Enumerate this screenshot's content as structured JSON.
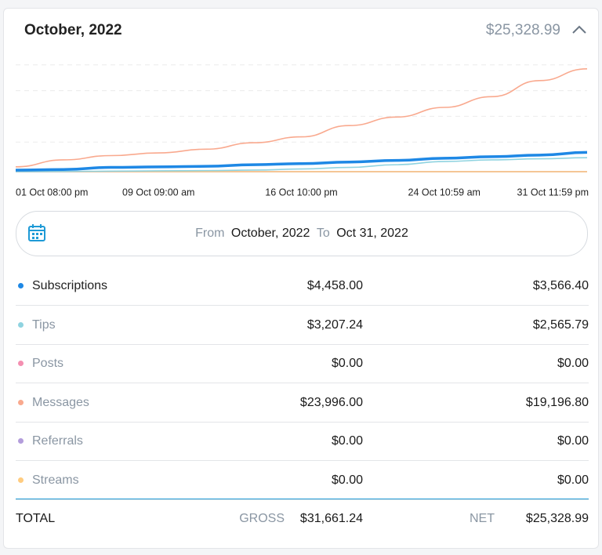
{
  "header": {
    "title": "October, 2022",
    "total": "$25,328.99"
  },
  "chart_data": {
    "type": "line",
    "categories": [
      "01 Oct 08:00 pm",
      null,
      null,
      "09 Oct 09:00 am",
      null,
      null,
      "16 Oct 10:00 pm",
      null,
      null,
      "24 Oct 10:59 am",
      null,
      null,
      "31 Oct 11:59 pm"
    ],
    "ylim": [
      0,
      24000
    ],
    "series": [
      {
        "name": "Subscriptions",
        "color": "#1e88e5",
        "values": [
          300,
          400,
          800,
          900,
          1000,
          1300,
          1500,
          1800,
          2100,
          2500,
          2800,
          3100,
          3600
        ],
        "gross": "$4,458.00",
        "net": "$3,566.40"
      },
      {
        "name": "Tips",
        "color": "#8fd3e0",
        "values": [
          0,
          50,
          100,
          150,
          200,
          300,
          500,
          800,
          1300,
          1900,
          2200,
          2400,
          2600
        ],
        "gross": "$3,207.24",
        "net": "$2,565.79"
      },
      {
        "name": "Posts",
        "color": "#f48fb1",
        "values": [
          0,
          0,
          0,
          0,
          0,
          0,
          0,
          0,
          0,
          0,
          0,
          0,
          0
        ],
        "gross": "$0.00",
        "net": "$0.00"
      },
      {
        "name": "Messages",
        "color": "#f9a98e",
        "values": [
          900,
          2200,
          3000,
          3500,
          4200,
          5400,
          6500,
          8600,
          10200,
          12000,
          14000,
          17000,
          19200
        ],
        "gross": "$23,996.00",
        "net": "$19,196.80"
      },
      {
        "name": "Referrals",
        "color": "#b39ddb",
        "values": [
          0,
          0,
          0,
          0,
          0,
          0,
          0,
          0,
          0,
          0,
          0,
          0,
          0
        ],
        "gross": "$0.00",
        "net": "$0.00"
      },
      {
        "name": "Streams",
        "color": "#ffcc80",
        "values": [
          0,
          0,
          0,
          0,
          0,
          0,
          0,
          0,
          0,
          0,
          0,
          0,
          0
        ],
        "gross": "$0.00",
        "net": "$0.00"
      }
    ]
  },
  "range": {
    "from_label": "From",
    "from": "October, 2022",
    "to_label": "To",
    "to": "Oct 31, 2022"
  },
  "footer": {
    "label": "TOTAL",
    "gross_label": "GROSS",
    "gross": "$31,661.24",
    "net_label": "NET",
    "net": "$25,328.99"
  }
}
